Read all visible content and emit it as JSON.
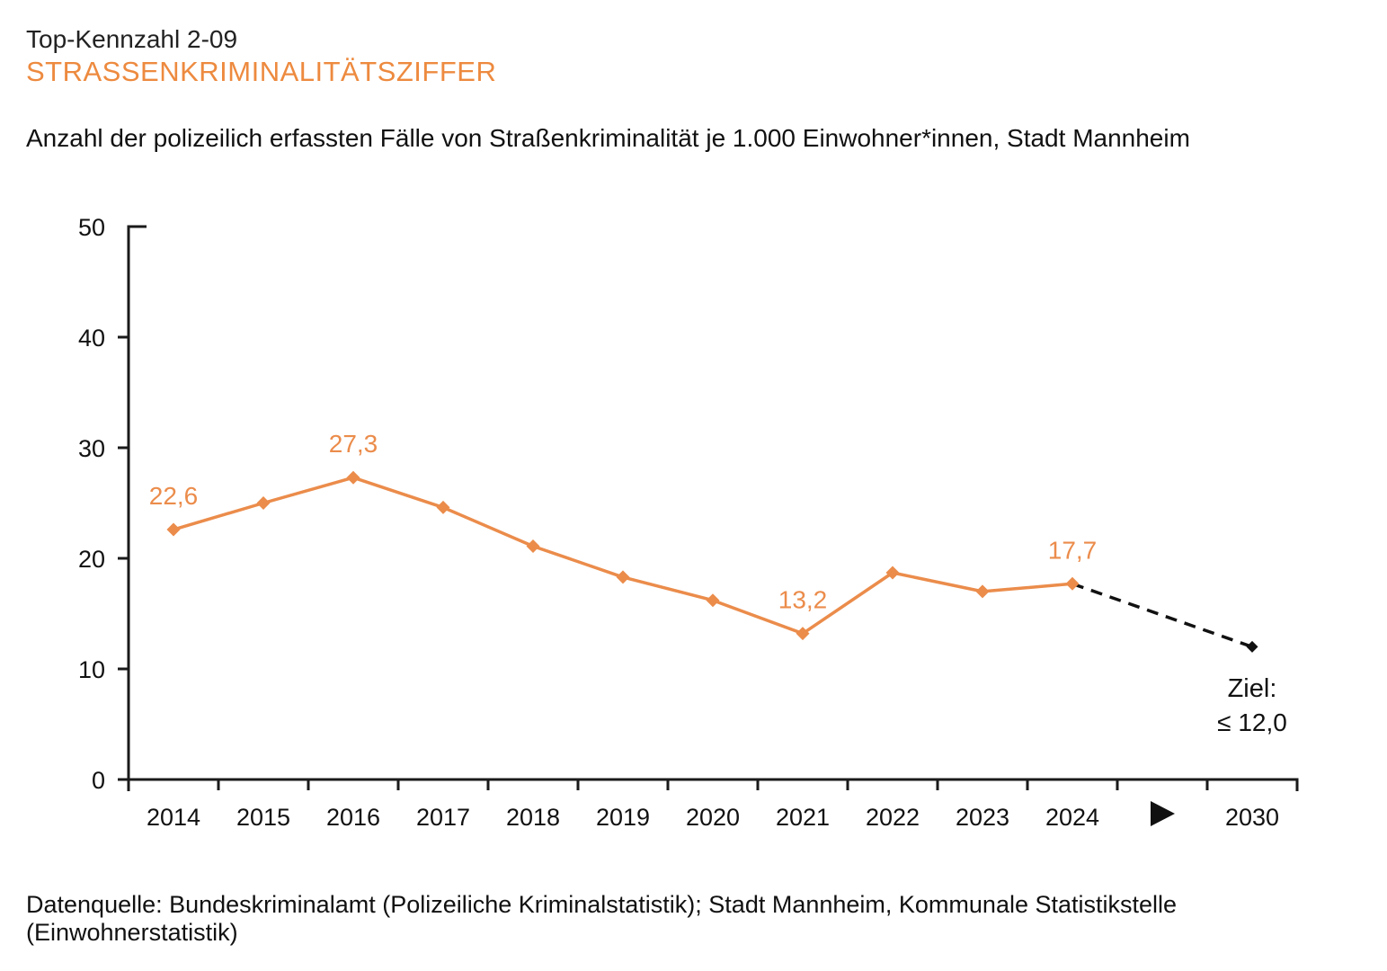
{
  "header": {
    "kicker": "Top-Kennzahl 2-09",
    "title": "STRASSENKRIMINALITÄTSZIFFER",
    "subtitle": "Anzahl der polizeilich erfassten Fälle von Straßenkriminalität je 1.000 Einwohner*innen, Stadt Mannheim"
  },
  "footer": {
    "source": "Datenquelle: Bundeskriminalamt (Polizeiliche Kriminalstatistik); Stadt Mannheim, Kommunale Statistikstelle (Einwohnerstatistik)"
  },
  "colors": {
    "accent_orange": "#ED8A3F",
    "line_orange": "#EB8C4B",
    "target_black": "#111111",
    "axis_black": "#1A1A1A"
  },
  "chart_data": {
    "type": "line",
    "title": "STRASSENKRIMINALITÄTSZIFFER",
    "subtitle": "Anzahl der polizeilich erfassten Fälle von Straßenkriminalität je 1.000 Einwohner*innen, Stadt Mannheim",
    "categories": [
      "2014",
      "2015",
      "2016",
      "2017",
      "2018",
      "2019",
      "2020",
      "2021",
      "2022",
      "2023",
      "2024"
    ],
    "values": [
      22.6,
      25.0,
      27.3,
      24.6,
      21.1,
      18.3,
      16.2,
      13.2,
      18.7,
      17.0,
      17.7
    ],
    "point_labels": [
      {
        "category": "2014",
        "text": "22,6"
      },
      {
        "category": "2016",
        "text": "27,3"
      },
      {
        "category": "2021",
        "text": "13,2"
      },
      {
        "category": "2024",
        "text": "17,7"
      }
    ],
    "target": {
      "category": "2030",
      "value": 12.0,
      "label_line1": "Ziel:",
      "label_line2": "≤ 12,0",
      "line_style": "dashed"
    },
    "gap_symbol": "▶",
    "xlabel": "",
    "ylabel": "",
    "ylim": [
      0,
      50
    ],
    "yticks": [
      0,
      10,
      20,
      30,
      40,
      50
    ],
    "grid": false,
    "legend": false
  }
}
